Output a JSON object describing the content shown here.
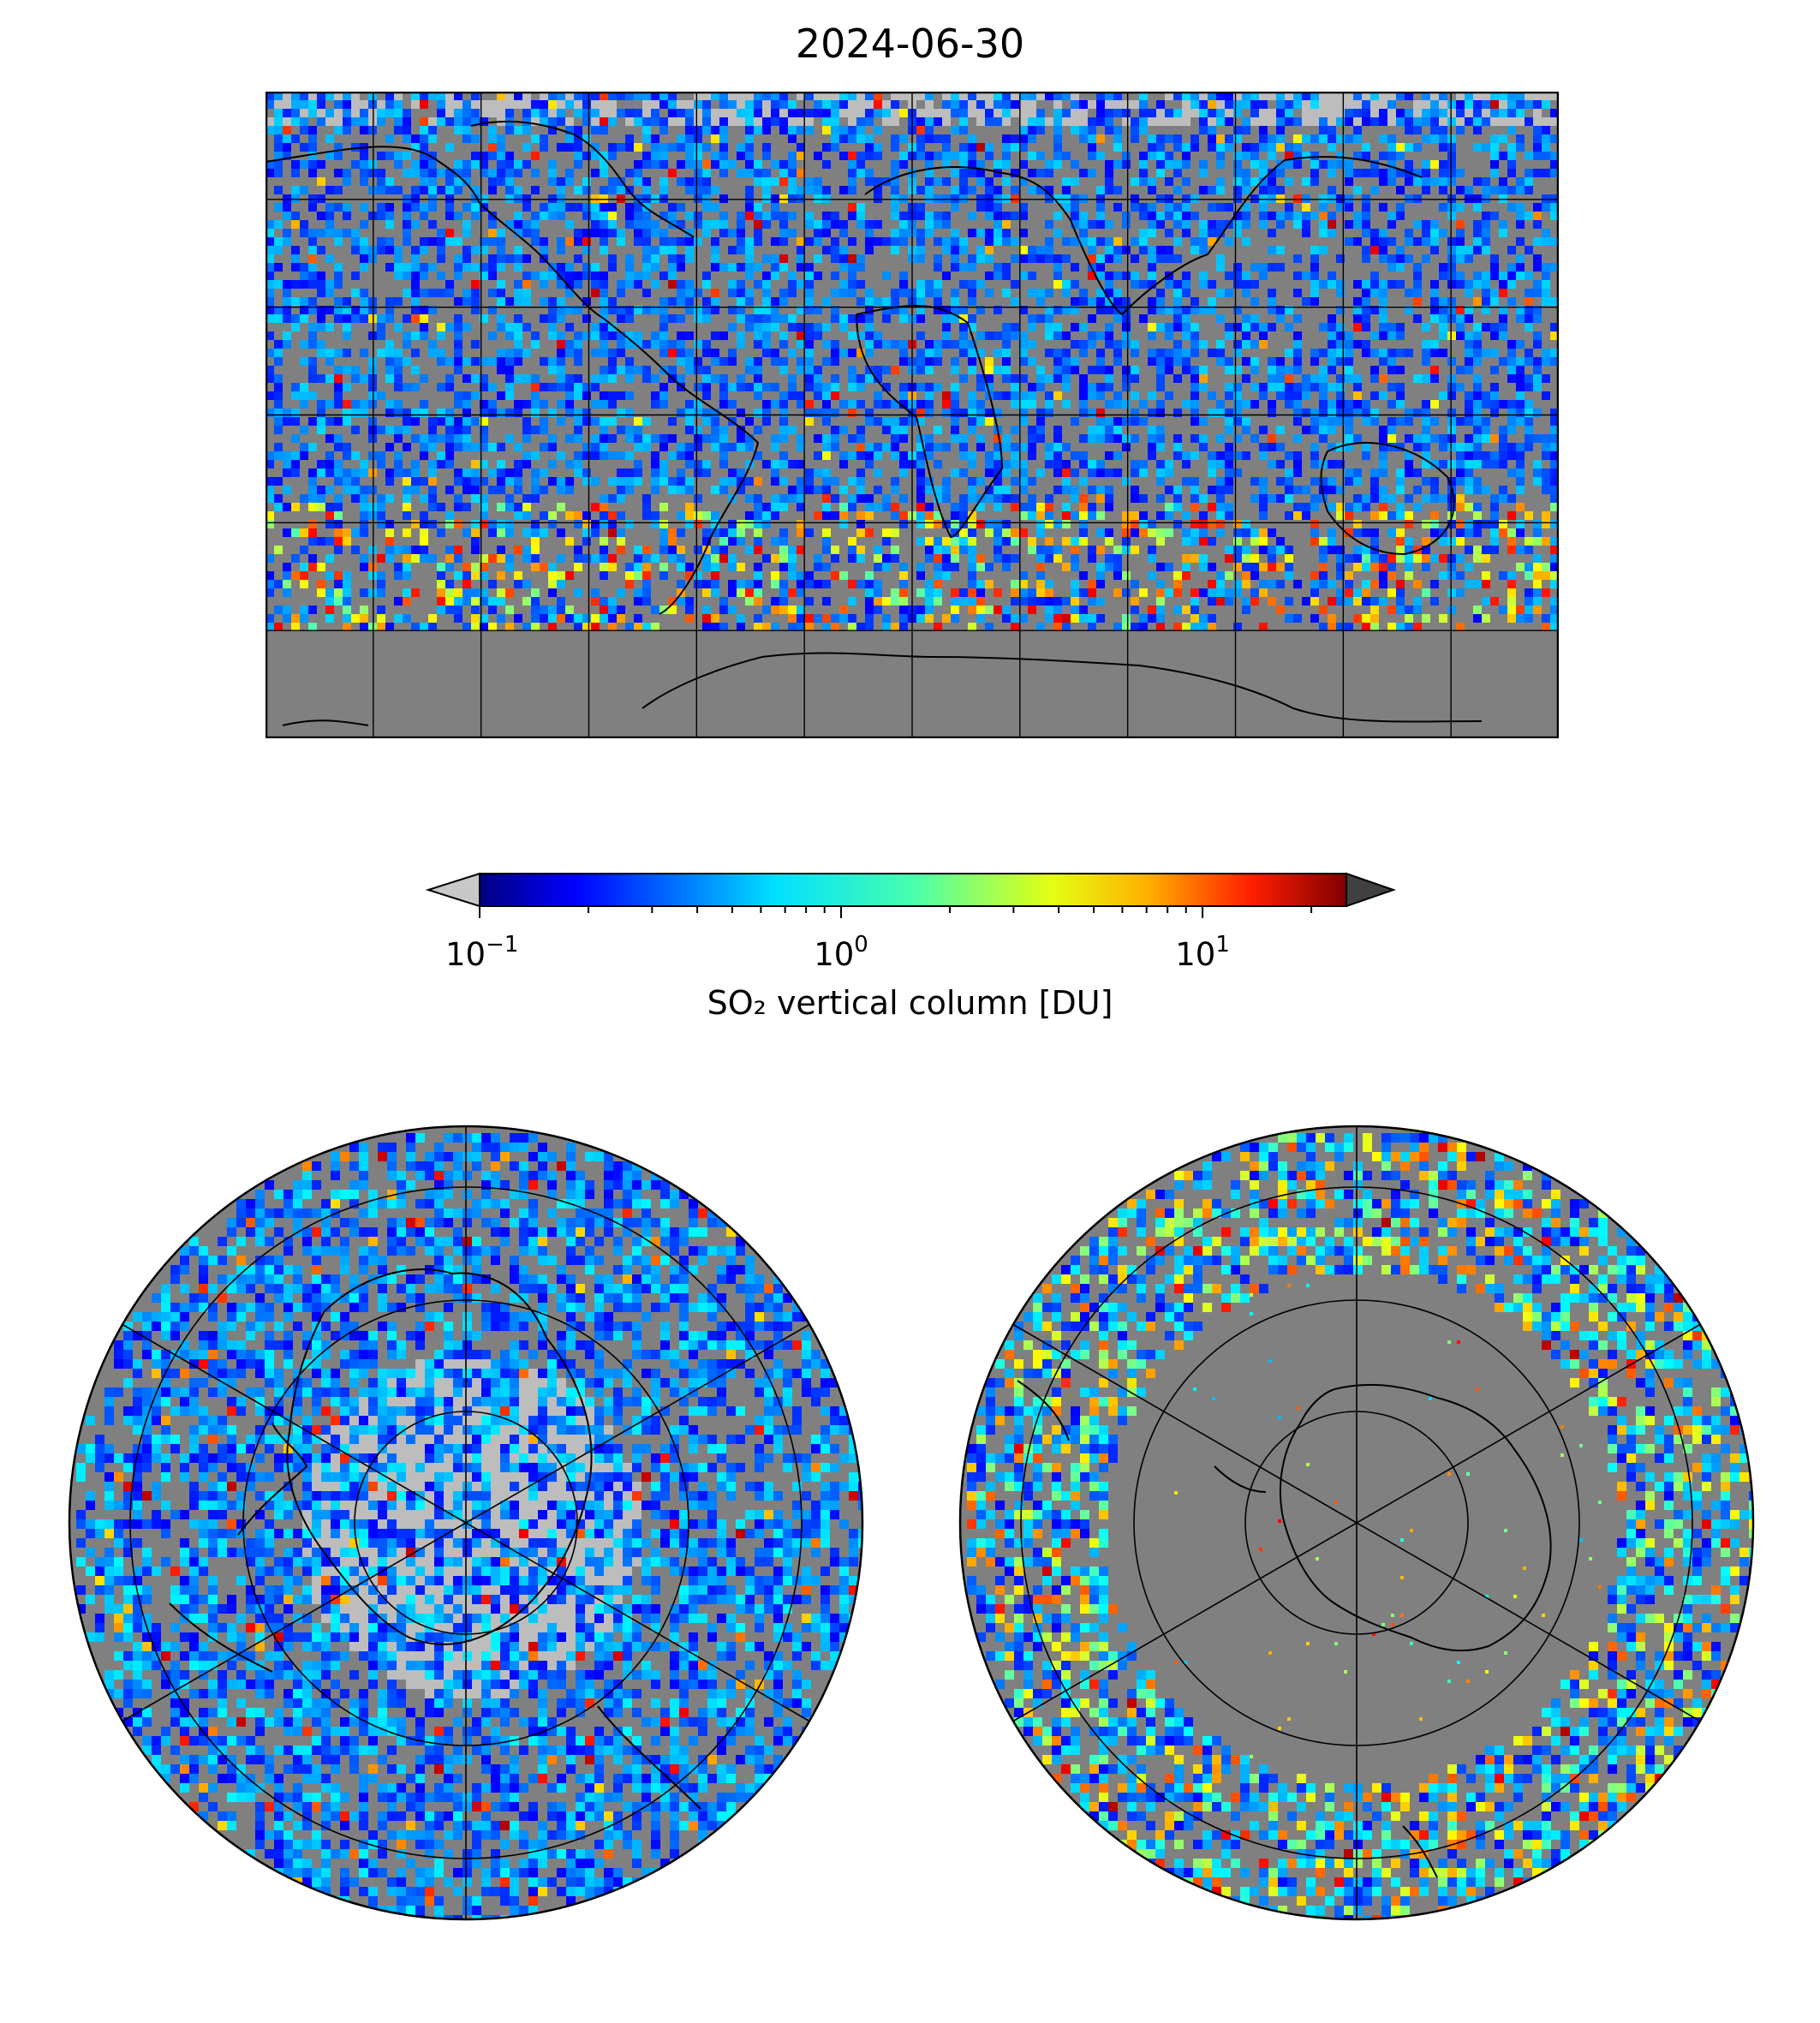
{
  "title": "2024-06-30",
  "colorbar": {
    "label": "SO₂ vertical column [DU]",
    "scale": "log",
    "range": [
      0.1,
      25
    ],
    "ticks": [
      {
        "base": "10",
        "exp": "−1",
        "value": 0.1
      },
      {
        "base": "10",
        "exp": "0",
        "value": 1
      },
      {
        "base": "10",
        "exp": "1",
        "value": 10
      }
    ],
    "colormap": "jet",
    "under_color": "#c8c8c8",
    "over_color": "#404040"
  },
  "maps": {
    "background_color": "#808080",
    "missing_color": "#bdbdbd",
    "panels": [
      {
        "name": "global",
        "projection": "plate-carree",
        "gridlines_lon_step": 30,
        "gridlines_lat_step": 30
      },
      {
        "name": "north-polar",
        "projection": "north-polar-stereographic"
      },
      {
        "name": "south-polar",
        "projection": "south-polar-stereographic"
      }
    ]
  }
}
